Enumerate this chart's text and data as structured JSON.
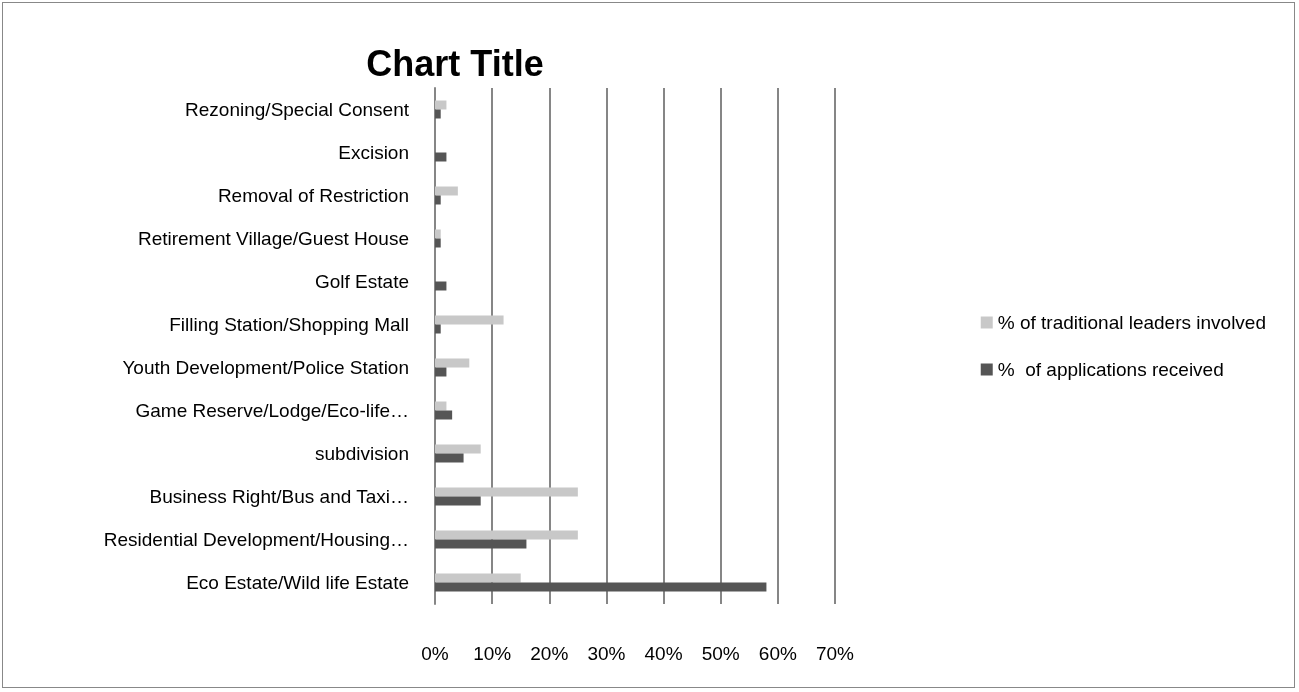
{
  "chart_data": {
    "type": "bar",
    "orientation": "horizontal",
    "title": "Chart Title",
    "categories": [
      "Rezoning/Special Consent",
      "Excision",
      "Removal of Restriction",
      "Retirement Village/Guest House",
      "Golf Estate",
      "Filling Station/Shopping Mall",
      "Youth Development/Police Station",
      "Game Reserve/Lodge/Eco-life…",
      "subdivision",
      "Business Right/Bus and Taxi…",
      "Residential Development/Housing…",
      "Eco Estate/Wild life Estate"
    ],
    "series": [
      {
        "name": "% of traditional leaders involved",
        "color": "#c8c8c8",
        "values": [
          2,
          0,
          4,
          1,
          0,
          12,
          6,
          2,
          8,
          25,
          25,
          15
        ]
      },
      {
        "name": "%  of applications received",
        "color": "#555555",
        "values": [
          1,
          2,
          1,
          1,
          2,
          1,
          2,
          3,
          5,
          8,
          16,
          58
        ]
      }
    ],
    "xlim": [
      0,
      70
    ],
    "xticks": [
      {
        "value": 0,
        "label": "0%"
      },
      {
        "value": 10,
        "label": "10%"
      },
      {
        "value": 20,
        "label": "20%"
      },
      {
        "value": 30,
        "label": "30%"
      },
      {
        "value": 40,
        "label": "40%"
      },
      {
        "value": 50,
        "label": "50%"
      },
      {
        "value": 60,
        "label": "60%"
      },
      {
        "value": 70,
        "label": "70%"
      }
    ],
    "grid": "x",
    "legend": "right"
  }
}
